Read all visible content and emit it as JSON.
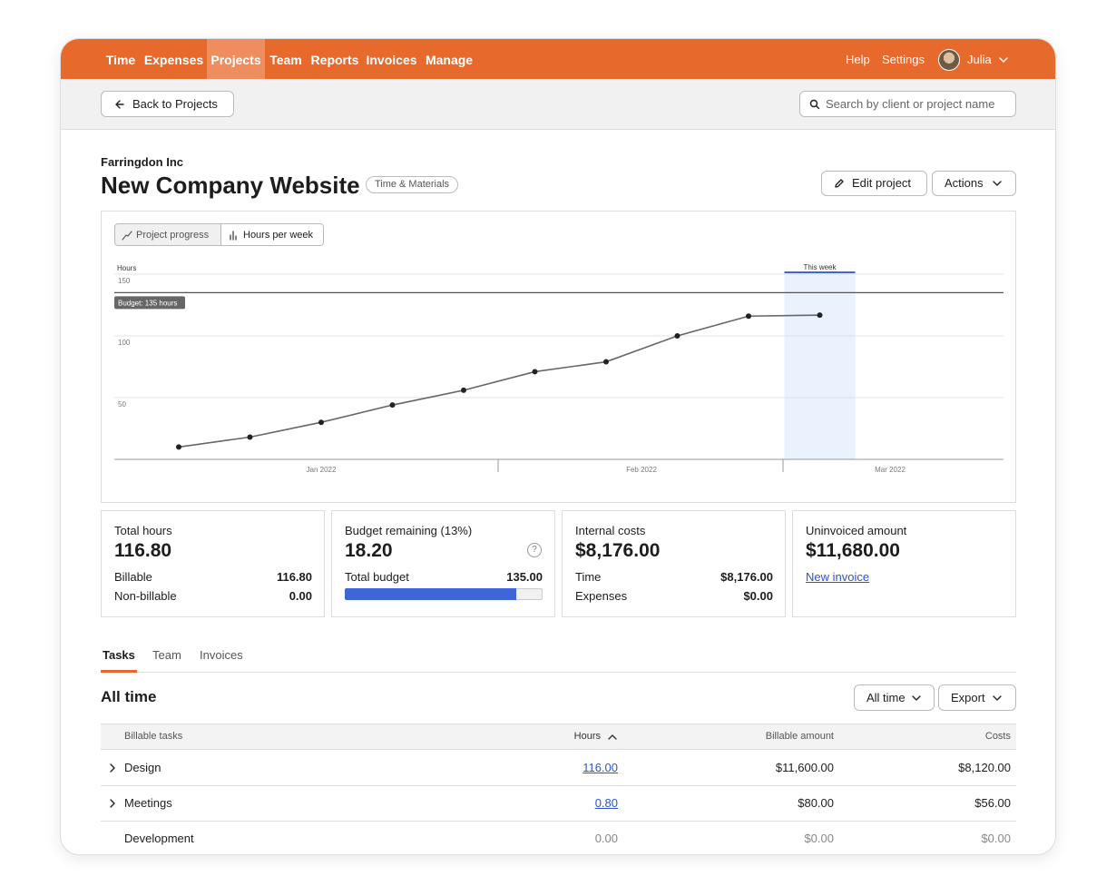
{
  "nav": {
    "items": [
      "Time",
      "Expenses",
      "Projects",
      "Team",
      "Reports",
      "Invoices",
      "Manage"
    ],
    "active": 2,
    "right": [
      "Help",
      "Settings"
    ],
    "user": "Julia"
  },
  "toolbar": {
    "back": "Back to Projects",
    "search_placeholder": "Search by client or project name"
  },
  "project": {
    "client": "Farringdon Inc",
    "title": "New Company Website",
    "badge": "Time & Materials",
    "buttons": [
      "Edit project",
      "Actions"
    ]
  },
  "chart_toggle": [
    "Project progress",
    "Hours per week"
  ],
  "chart_data": {
    "type": "line",
    "y_label": "Hours",
    "categories": [
      null,
      null,
      null,
      null,
      null,
      null,
      null,
      null,
      null,
      null
    ],
    "values": [
      10,
      18,
      30,
      44,
      56,
      71,
      79,
      100,
      116,
      116.8
    ],
    "color": "#666666",
    "ylim": [
      0,
      150
    ],
    "yticks": [
      50,
      100,
      150
    ],
    "grid": true,
    "month_labels": [
      "Jan 2022",
      "Feb 2022",
      "Mar 2022"
    ],
    "budget": 135,
    "budget_label": "Budget: 135 hours",
    "current_label": "This week",
    "current_index": 9
  },
  "stats": [
    {
      "label": "Total hours",
      "value": "116.80",
      "rows": [
        [
          "Billable",
          "116.80"
        ],
        [
          "Non-billable",
          "0.00"
        ]
      ]
    },
    {
      "label": "Budget remaining (13%)",
      "value": 18.2,
      "value_label": "18.20",
      "help": "?",
      "total_label_text": "Total budget",
      "total": 135,
      "total_label": "135.00"
    },
    {
      "label": "Internal costs",
      "value": "$8,176.00",
      "rows": [
        [
          "Time",
          "$8,176.00"
        ],
        [
          "Expenses",
          "$0.00"
        ]
      ]
    },
    {
      "label": "Uninvoiced amount",
      "value": "$11,680.00",
      "link": "New invoice"
    }
  ],
  "tabs": {
    "items": [
      "Tasks",
      "Team",
      "Invoices"
    ],
    "active": 0
  },
  "section": {
    "title": "All time",
    "buttons": [
      "All time",
      "Export"
    ]
  },
  "table": {
    "columns": [
      "Billable tasks",
      "Hours",
      "Billable amount",
      "Costs"
    ],
    "rows": [
      {
        "cells": [
          "Design",
          "116.00",
          "$11,600.00",
          "$8,120.00"
        ],
        "expandable": true
      },
      {
        "cells": [
          "Meetings",
          "0.80",
          "$80.00",
          "$56.00"
        ],
        "expandable": true
      },
      {
        "cells": [
          "Development",
          "0.00",
          "$0.00",
          "$0.00"
        ],
        "expandable": false
      }
    ]
  }
}
